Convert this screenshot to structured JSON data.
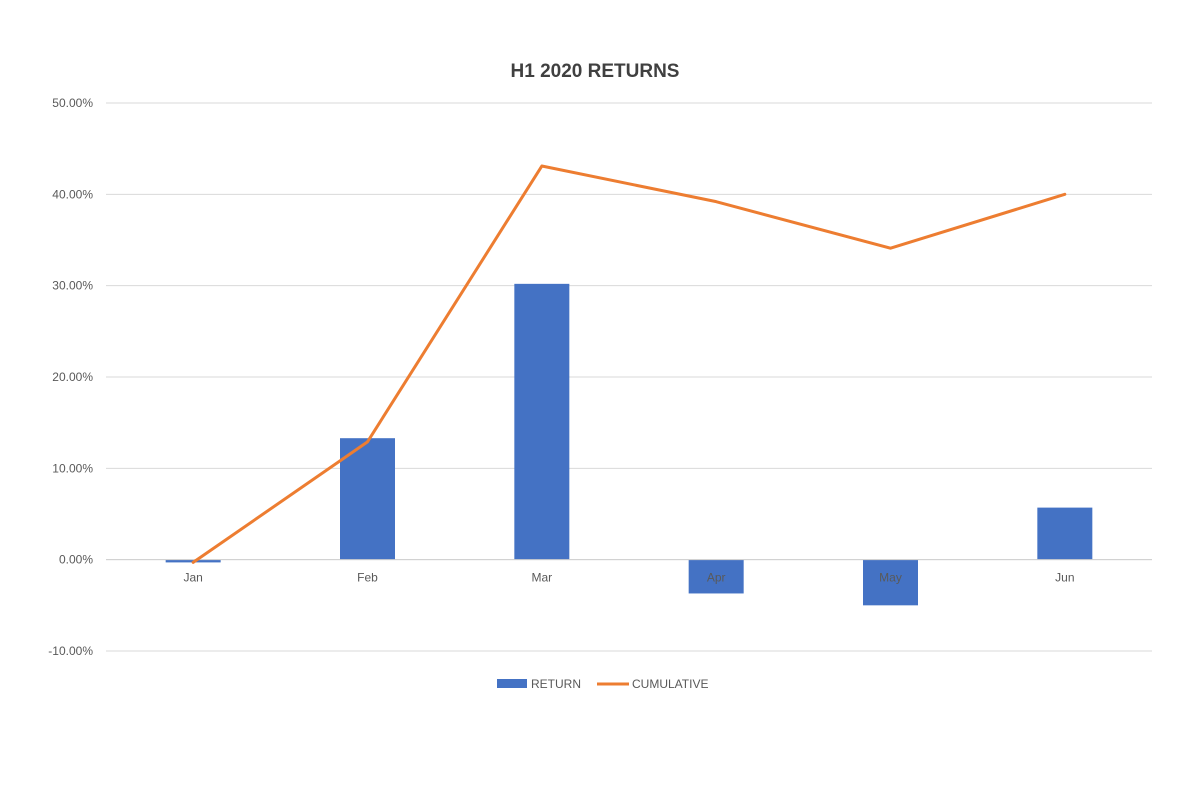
{
  "chart_data": {
    "type": "bar",
    "title": "H1 2020 RETURNS",
    "xlabel": "",
    "ylabel": "",
    "categories": [
      "Jan",
      "Feb",
      "Mar",
      "Apr",
      "May",
      "Jun"
    ],
    "series": [
      {
        "name": "RETURN",
        "type": "bar",
        "color": "#4472C4",
        "values": [
          -0.3,
          13.3,
          30.2,
          -3.7,
          -5.0,
          5.7
        ]
      },
      {
        "name": "CUMULATIVE",
        "type": "line",
        "color": "#ED7D31",
        "values": [
          -0.3,
          12.9,
          43.1,
          39.2,
          34.1,
          40.0
        ]
      }
    ],
    "ylim": [
      -10,
      50
    ],
    "yticks": [
      -10,
      0,
      10,
      20,
      30,
      40,
      50
    ],
    "ytick_labels": [
      "-10.00%",
      "0.00%",
      "10.00%",
      "20.00%",
      "30.00%",
      "40.00%",
      "50.00%"
    ],
    "grid": true,
    "legend_position": "bottom"
  }
}
